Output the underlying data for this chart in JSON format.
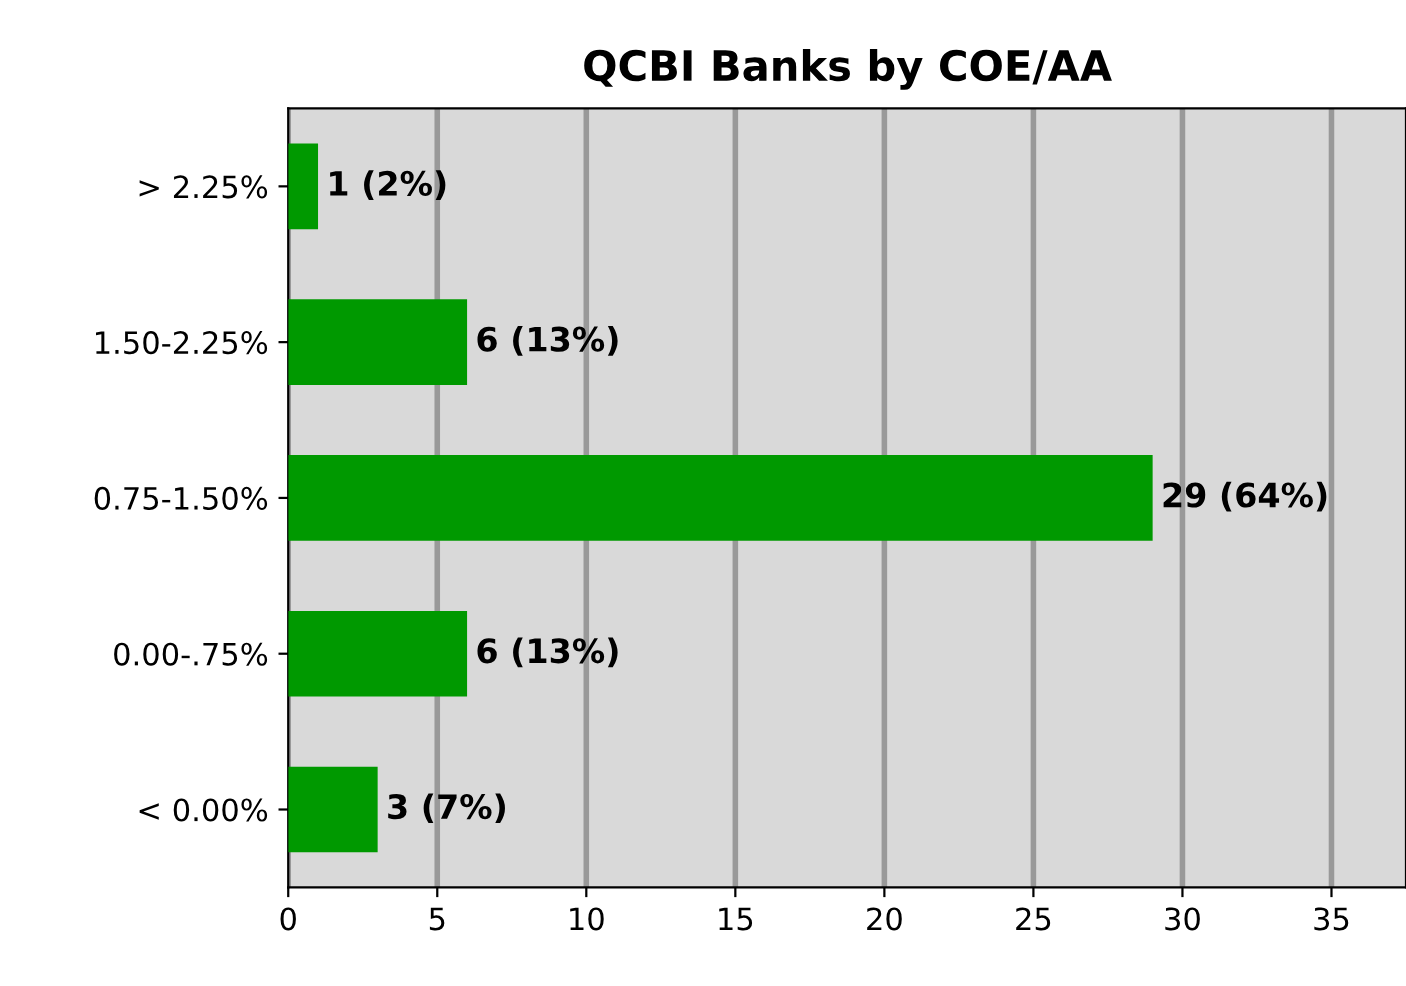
{
  "chart_data": {
    "type": "bar",
    "orientation": "horizontal",
    "title": "QCBI Banks by COE/AA",
    "categories": [
      "> 2.25%",
      "1.50-2.25%",
      "0.75-1.50%",
      "0.00-.75%",
      "< 0.00%"
    ],
    "values": [
      1,
      6,
      29,
      6,
      3
    ],
    "value_labels": [
      "1 (2%)",
      "6 (13%)",
      "29 (64%)",
      "6 (13%)",
      "3 (7%)"
    ],
    "color": "#009900",
    "xlim": [
      0,
      37.5
    ],
    "xticks": [
      0,
      5,
      10,
      15,
      20,
      25,
      30,
      35
    ],
    "grid": "x"
  }
}
